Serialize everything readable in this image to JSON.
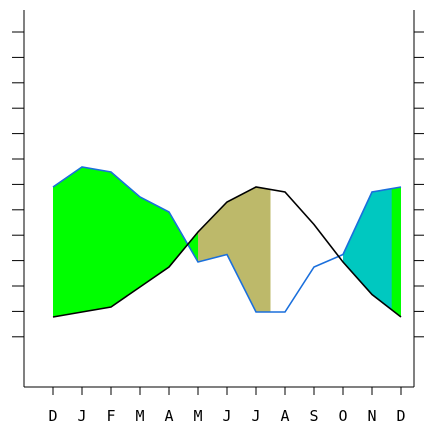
{
  "chart_data": {
    "type": "area",
    "categories": [
      "D",
      "J",
      "F",
      "M",
      "A",
      "M",
      "J",
      "J",
      "A",
      "S",
      "O",
      "N",
      "D"
    ],
    "ylim": [
      0,
      14
    ],
    "grid": false,
    "legend": "none",
    "series": [
      {
        "values": [
          1.8,
          2.0,
          2.2,
          3.0,
          3.8,
          5.2,
          6.4,
          7.0,
          6.8,
          5.5,
          4.0,
          2.7,
          1.8
        ]
      },
      {
        "values": [
          7.0,
          7.8,
          7.6,
          6.6,
          6.0,
          4.0,
          4.3,
          2.0,
          2.0,
          3.8,
          4.3,
          6.8,
          7.0
        ]
      }
    ],
    "fill_segments": [
      {
        "from": 0,
        "to": 5,
        "color": "#00ff00"
      },
      {
        "from": 5,
        "to": 7.5,
        "color": "#bdb96a"
      },
      {
        "from": 10,
        "to": 12,
        "color": "#00c8c0"
      },
      {
        "from": 11.68,
        "to": 12,
        "color": "#00ff00"
      }
    ],
    "colors": {
      "line_upper": "#000000",
      "line_lower": "#1a6fdc",
      "axis": "#000000"
    }
  }
}
